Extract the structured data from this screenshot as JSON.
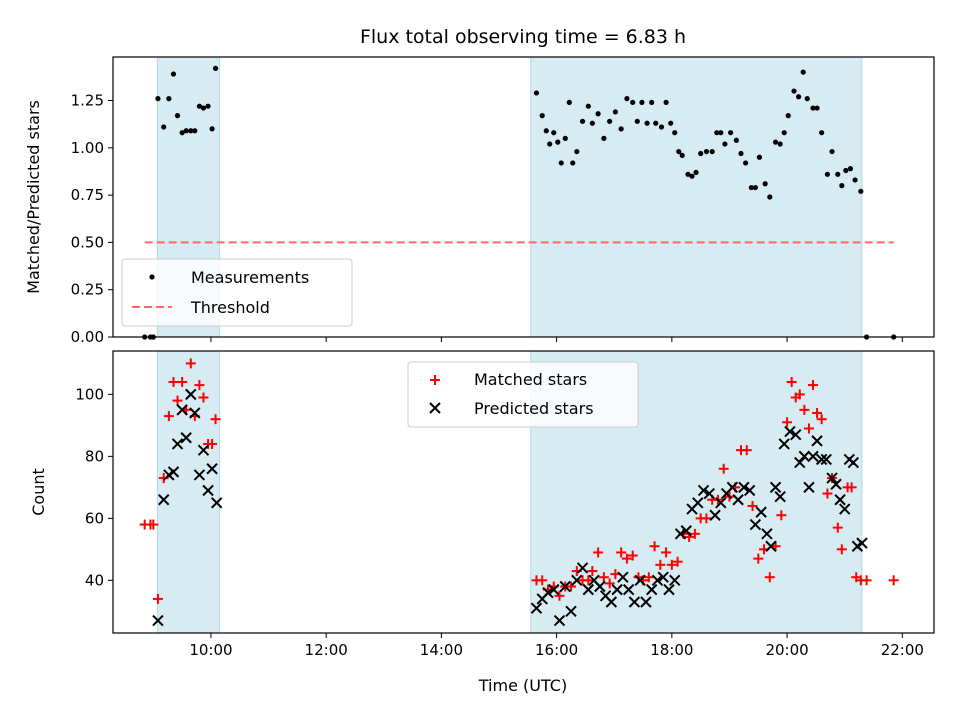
{
  "chart_data": [
    {
      "type": "scatter",
      "title": "Flux total observing time = 6.83 h",
      "xlabel": "",
      "ylabel": "Matched/Predicted stars",
      "xlim": [
        8.3,
        22.55
      ],
      "ylim": [
        0,
        1.48
      ],
      "yticks": [
        0.0,
        0.25,
        0.5,
        0.75,
        1.0,
        1.25
      ],
      "ytick_labels": [
        "0.00",
        "0.25",
        "0.50",
        "0.75",
        "1.00",
        "1.25"
      ],
      "grid": false,
      "legend_position": "lower-left",
      "shaded_intervals": [
        [
          9.07,
          10.15
        ],
        [
          15.55,
          21.3
        ]
      ],
      "series": [
        {
          "name": "Measurements",
          "color": "#000000",
          "marker": "dot",
          "points": [
            [
              8.85,
              0.0
            ],
            [
              8.95,
              0.0
            ],
            [
              9.0,
              0.0
            ],
            [
              9.08,
              1.26
            ],
            [
              9.18,
              1.11
            ],
            [
              9.27,
              1.26
            ],
            [
              9.35,
              1.39
            ],
            [
              9.42,
              1.17
            ],
            [
              9.5,
              1.08
            ],
            [
              9.57,
              1.09
            ],
            [
              9.65,
              1.09
            ],
            [
              9.72,
              1.09
            ],
            [
              9.8,
              1.22
            ],
            [
              9.87,
              1.21
            ],
            [
              9.95,
              1.22
            ],
            [
              10.02,
              1.1
            ],
            [
              10.08,
              1.42
            ],
            [
              15.65,
              1.29
            ],
            [
              15.75,
              1.17
            ],
            [
              15.82,
              1.09
            ],
            [
              15.88,
              1.02
            ],
            [
              15.95,
              1.08
            ],
            [
              16.02,
              1.03
            ],
            [
              16.08,
              0.92
            ],
            [
              16.15,
              1.05
            ],
            [
              16.22,
              1.24
            ],
            [
              16.28,
              0.92
            ],
            [
              16.35,
              0.98
            ],
            [
              16.45,
              1.14
            ],
            [
              16.55,
              1.22
            ],
            [
              16.62,
              1.13
            ],
            [
              16.72,
              1.18
            ],
            [
              16.82,
              1.05
            ],
            [
              16.92,
              1.14
            ],
            [
              17.02,
              1.19
            ],
            [
              17.12,
              1.1
            ],
            [
              17.22,
              1.26
            ],
            [
              17.32,
              1.24
            ],
            [
              17.4,
              1.14
            ],
            [
              17.48,
              1.24
            ],
            [
              17.57,
              1.13
            ],
            [
              17.65,
              1.24
            ],
            [
              17.72,
              1.13
            ],
            [
              17.82,
              1.11
            ],
            [
              17.9,
              1.24
            ],
            [
              17.98,
              1.13
            ],
            [
              18.05,
              1.08
            ],
            [
              18.12,
              0.98
            ],
            [
              18.18,
              0.96
            ],
            [
              18.28,
              0.86
            ],
            [
              18.35,
              0.85
            ],
            [
              18.42,
              0.87
            ],
            [
              18.5,
              0.97
            ],
            [
              18.6,
              0.98
            ],
            [
              18.7,
              0.98
            ],
            [
              18.78,
              1.08
            ],
            [
              18.85,
              1.08
            ],
            [
              18.92,
              1.02
            ],
            [
              19.02,
              1.08
            ],
            [
              19.12,
              1.04
            ],
            [
              19.2,
              0.97
            ],
            [
              19.28,
              0.92
            ],
            [
              19.38,
              0.79
            ],
            [
              19.45,
              0.79
            ],
            [
              19.52,
              0.95
            ],
            [
              19.62,
              0.81
            ],
            [
              19.7,
              0.74
            ],
            [
              19.8,
              1.03
            ],
            [
              19.88,
              1.02
            ],
            [
              19.95,
              1.08
            ],
            [
              20.02,
              1.17
            ],
            [
              20.12,
              1.3
            ],
            [
              20.2,
              1.27
            ],
            [
              20.28,
              1.4
            ],
            [
              20.35,
              1.26
            ],
            [
              20.45,
              1.21
            ],
            [
              20.52,
              1.21
            ],
            [
              20.6,
              1.08
            ],
            [
              20.7,
              0.86
            ],
            [
              20.78,
              0.98
            ],
            [
              20.88,
              0.86
            ],
            [
              20.95,
              0.8
            ],
            [
              21.02,
              0.88
            ],
            [
              21.1,
              0.89
            ],
            [
              21.18,
              0.83
            ],
            [
              21.28,
              0.77
            ],
            [
              21.38,
              0.0
            ],
            [
              21.85,
              0.0
            ]
          ]
        },
        {
          "name": "Threshold",
          "color": "#ff6666",
          "line_style": "dashed",
          "points": [
            [
              8.85,
              0.5
            ],
            [
              21.85,
              0.5
            ]
          ]
        }
      ]
    },
    {
      "type": "scatter",
      "title": "",
      "xlabel": "Time (UTC)",
      "ylabel": "Count",
      "xlim": [
        8.3,
        22.55
      ],
      "ylim": [
        23,
        114
      ],
      "xticks": [
        10,
        12,
        14,
        16,
        18,
        20,
        22
      ],
      "xtick_labels": [
        "10:00",
        "12:00",
        "14:00",
        "16:00",
        "18:00",
        "20:00",
        "22:00"
      ],
      "yticks": [
        40,
        60,
        80,
        100
      ],
      "ytick_labels": [
        "40",
        "60",
        "80",
        "100"
      ],
      "grid": false,
      "legend_position": "top-center",
      "shaded_intervals": [
        [
          9.07,
          10.15
        ],
        [
          15.55,
          21.3
        ]
      ],
      "series": [
        {
          "name": "Matched stars",
          "color": "#ff0000",
          "marker": "plus",
          "points": [
            [
              8.85,
              58
            ],
            [
              8.95,
              58
            ],
            [
              9.0,
              58
            ],
            [
              9.08,
              34
            ],
            [
              9.18,
              73
            ],
            [
              9.27,
              93
            ],
            [
              9.35,
              104
            ],
            [
              9.42,
              98
            ],
            [
              9.5,
              104
            ],
            [
              9.57,
              95
            ],
            [
              9.65,
              110
            ],
            [
              9.72,
              93
            ],
            [
              9.8,
              103
            ],
            [
              9.87,
              99
            ],
            [
              9.95,
              84
            ],
            [
              10.02,
              84
            ],
            [
              10.08,
              92
            ],
            [
              15.65,
              40
            ],
            [
              15.75,
              40
            ],
            [
              15.85,
              37
            ],
            [
              15.95,
              38
            ],
            [
              16.05,
              35
            ],
            [
              16.15,
              38
            ],
            [
              16.25,
              38
            ],
            [
              16.35,
              43
            ],
            [
              16.45,
              40
            ],
            [
              16.55,
              40
            ],
            [
              16.62,
              43
            ],
            [
              16.72,
              49
            ],
            [
              16.82,
              41
            ],
            [
              16.92,
              39
            ],
            [
              17.02,
              42
            ],
            [
              17.12,
              49
            ],
            [
              17.22,
              47
            ],
            [
              17.32,
              48
            ],
            [
              17.42,
              41
            ],
            [
              17.5,
              40
            ],
            [
              17.6,
              41
            ],
            [
              17.7,
              51
            ],
            [
              17.8,
              45
            ],
            [
              17.9,
              49
            ],
            [
              18.0,
              45
            ],
            [
              18.1,
              46
            ],
            [
              18.2,
              55
            ],
            [
              18.3,
              54
            ],
            [
              18.4,
              55
            ],
            [
              18.5,
              60
            ],
            [
              18.6,
              60
            ],
            [
              18.7,
              66
            ],
            [
              18.8,
              66
            ],
            [
              18.9,
              76
            ],
            [
              19.0,
              67
            ],
            [
              19.1,
              70
            ],
            [
              19.2,
              82
            ],
            [
              19.3,
              82
            ],
            [
              19.4,
              64
            ],
            [
              19.5,
              47
            ],
            [
              19.6,
              50
            ],
            [
              19.7,
              41
            ],
            [
              19.8,
              51
            ],
            [
              19.9,
              61
            ],
            [
              20.0,
              91
            ],
            [
              20.08,
              104
            ],
            [
              20.15,
              99
            ],
            [
              20.22,
              100
            ],
            [
              20.3,
              95
            ],
            [
              20.38,
              89
            ],
            [
              20.45,
              103
            ],
            [
              20.52,
              94
            ],
            [
              20.6,
              92
            ],
            [
              20.7,
              68
            ],
            [
              20.78,
              73
            ],
            [
              20.88,
              57
            ],
            [
              20.95,
              50
            ],
            [
              21.05,
              70
            ],
            [
              21.12,
              70
            ],
            [
              21.2,
              41
            ],
            [
              21.28,
              40
            ],
            [
              21.38,
              40
            ],
            [
              21.85,
              40
            ]
          ]
        },
        {
          "name": "Predicted stars",
          "color": "#000000",
          "marker": "x",
          "points": [
            [
              9.08,
              27
            ],
            [
              9.18,
              66
            ],
            [
              9.27,
              74
            ],
            [
              9.35,
              75
            ],
            [
              9.42,
              84
            ],
            [
              9.5,
              95
            ],
            [
              9.57,
              86
            ],
            [
              9.65,
              100
            ],
            [
              9.72,
              94
            ],
            [
              9.8,
              74
            ],
            [
              9.87,
              82
            ],
            [
              9.95,
              69
            ],
            [
              10.02,
              76
            ],
            [
              10.1,
              65
            ],
            [
              15.65,
              31
            ],
            [
              15.75,
              34
            ],
            [
              15.85,
              36
            ],
            [
              15.95,
              37
            ],
            [
              16.05,
              27
            ],
            [
              16.15,
              38
            ],
            [
              16.25,
              30
            ],
            [
              16.35,
              40
            ],
            [
              16.45,
              44
            ],
            [
              16.55,
              37
            ],
            [
              16.65,
              40
            ],
            [
              16.75,
              38
            ],
            [
              16.85,
              35
            ],
            [
              16.95,
              33
            ],
            [
              17.05,
              37
            ],
            [
              17.15,
              41
            ],
            [
              17.25,
              37
            ],
            [
              17.35,
              33
            ],
            [
              17.45,
              40
            ],
            [
              17.55,
              33
            ],
            [
              17.65,
              37
            ],
            [
              17.75,
              40
            ],
            [
              17.85,
              41
            ],
            [
              17.95,
              37
            ],
            [
              18.05,
              40
            ],
            [
              18.15,
              55
            ],
            [
              18.25,
              56
            ],
            [
              18.35,
              63
            ],
            [
              18.45,
              65
            ],
            [
              18.55,
              69
            ],
            [
              18.65,
              68
            ],
            [
              18.75,
              61
            ],
            [
              18.85,
              65
            ],
            [
              18.95,
              68
            ],
            [
              19.05,
              70
            ],
            [
              19.15,
              66
            ],
            [
              19.25,
              70
            ],
            [
              19.35,
              69
            ],
            [
              19.45,
              58
            ],
            [
              19.55,
              62
            ],
            [
              19.65,
              55
            ],
            [
              19.72,
              51
            ],
            [
              19.8,
              70
            ],
            [
              19.88,
              67
            ],
            [
              19.95,
              84
            ],
            [
              20.05,
              88
            ],
            [
              20.15,
              87
            ],
            [
              20.22,
              78
            ],
            [
              20.3,
              80
            ],
            [
              20.38,
              70
            ],
            [
              20.45,
              80
            ],
            [
              20.52,
              85
            ],
            [
              20.6,
              79
            ],
            [
              20.68,
              79
            ],
            [
              20.78,
              73
            ],
            [
              20.85,
              71
            ],
            [
              20.92,
              66
            ],
            [
              21.0,
              63
            ],
            [
              21.08,
              79
            ],
            [
              21.15,
              78
            ],
            [
              21.22,
              51
            ],
            [
              21.3,
              52
            ]
          ]
        }
      ]
    }
  ]
}
